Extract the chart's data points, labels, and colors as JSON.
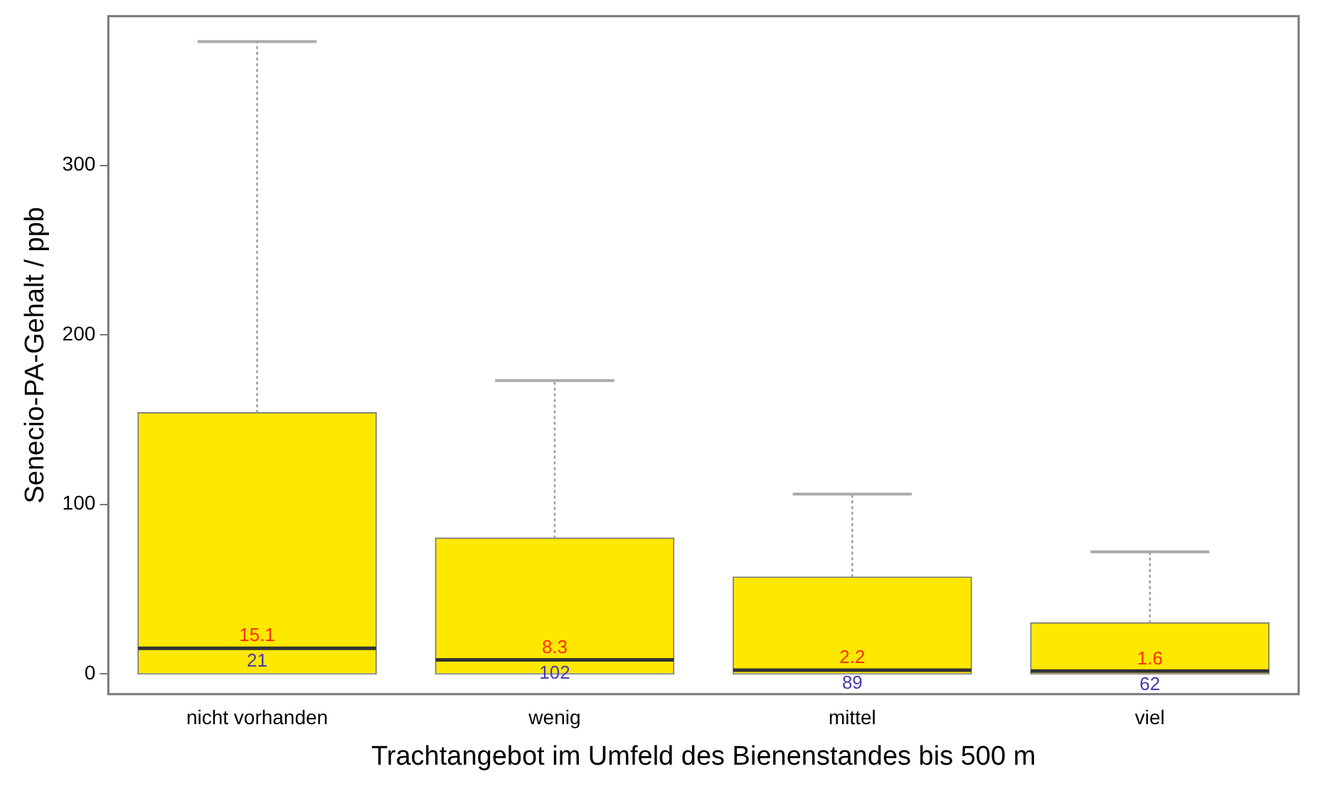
{
  "chart_data": {
    "type": "box",
    "xlabel": "Trachtangebot im Umfeld des Bienenstandes bis 500 m",
    "ylabel": "Senecio-PA-Gehalt / ppb",
    "categories": [
      "nicht vorhanden",
      "wenig",
      "mittel",
      "viel"
    ],
    "color": "#ffe800",
    "boxes": [
      {
        "low": 0,
        "q1": 0,
        "median": 15.1,
        "q3": 154,
        "high": 373
      },
      {
        "low": 0,
        "q1": 0,
        "median": 8.3,
        "q3": 80,
        "high": 173
      },
      {
        "low": 0,
        "q1": 0,
        "median": 2.2,
        "q3": 57,
        "high": 106
      },
      {
        "low": 0,
        "q1": 0,
        "median": 1.6,
        "q3": 30,
        "high": 72
      }
    ],
    "ylim": [
      -12,
      388
    ],
    "yticks": [
      0,
      100,
      200,
      300
    ],
    "grid": false,
    "legend": false,
    "annotations": [
      {
        "text": "15.1",
        "x": "nicht vorhanden",
        "y": 15.1
      },
      {
        "text": "8.3",
        "x": "wenig",
        "y": 8.3
      },
      {
        "text": "2.2",
        "x": "mittel",
        "y": 2.2
      },
      {
        "text": "1.6",
        "x": "viel",
        "y": 1.6
      },
      "21",
      "102",
      "89",
      "62"
    ]
  }
}
